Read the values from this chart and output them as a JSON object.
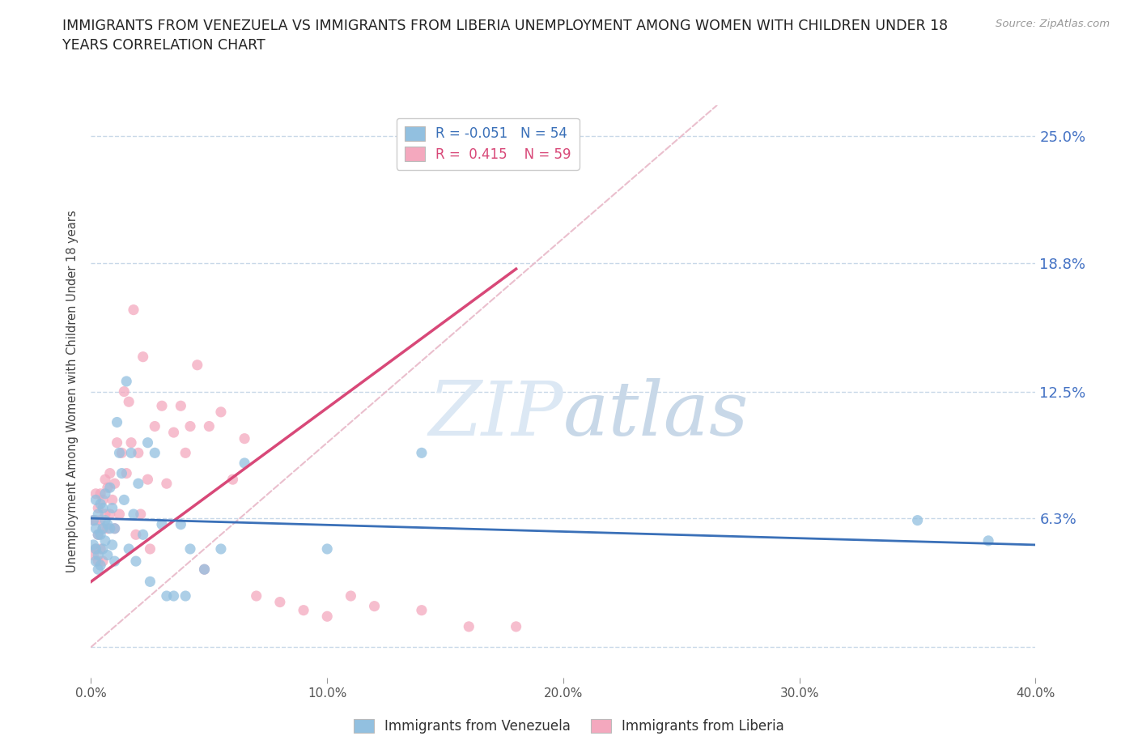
{
  "title": "IMMIGRANTS FROM VENEZUELA VS IMMIGRANTS FROM LIBERIA UNEMPLOYMENT AMONG WOMEN WITH CHILDREN UNDER 18\nYEARS CORRELATION CHART",
  "source_text": "Source: ZipAtlas.com",
  "ylabel": "Unemployment Among Women with Children Under 18 years",
  "xlim": [
    0.0,
    0.4
  ],
  "ylim": [
    -0.015,
    0.265
  ],
  "xticks": [
    0.0,
    0.1,
    0.2,
    0.3,
    0.4
  ],
  "xticklabels": [
    "0.0%",
    "10.0%",
    "20.0%",
    "30.0%",
    "40.0%"
  ],
  "ytick_positions": [
    0.0,
    0.063,
    0.125,
    0.188,
    0.25
  ],
  "ytick_labels": [
    "",
    "6.3%",
    "12.5%",
    "18.8%",
    "25.0%"
  ],
  "color_venezuela": "#92c0e0",
  "color_liberia": "#f4a8be",
  "line_color_venezuela": "#3a70b8",
  "line_color_liberia": "#d84878",
  "diagonal_color": "#e8b8c8",
  "grid_color": "#c8d8e8",
  "background_color": "#ffffff",
  "watermark_color": "#dce8f4",
  "legend_R_venezuela": "-0.051",
  "legend_N_venezuela": "54",
  "legend_R_liberia": "0.415",
  "legend_N_liberia": "59",
  "venezuela_x": [
    0.001,
    0.001,
    0.002,
    0.002,
    0.002,
    0.002,
    0.003,
    0.003,
    0.003,
    0.003,
    0.004,
    0.004,
    0.004,
    0.005,
    0.005,
    0.005,
    0.006,
    0.006,
    0.006,
    0.007,
    0.007,
    0.008,
    0.008,
    0.009,
    0.009,
    0.01,
    0.01,
    0.011,
    0.012,
    0.013,
    0.014,
    0.015,
    0.016,
    0.017,
    0.018,
    0.019,
    0.02,
    0.022,
    0.024,
    0.025,
    0.027,
    0.03,
    0.032,
    0.035,
    0.038,
    0.04,
    0.042,
    0.048,
    0.055,
    0.065,
    0.1,
    0.14,
    0.35,
    0.38
  ],
  "venezuela_y": [
    0.062,
    0.05,
    0.072,
    0.058,
    0.048,
    0.042,
    0.065,
    0.055,
    0.045,
    0.038,
    0.07,
    0.055,
    0.04,
    0.068,
    0.058,
    0.048,
    0.075,
    0.062,
    0.052,
    0.06,
    0.045,
    0.078,
    0.058,
    0.068,
    0.05,
    0.058,
    0.042,
    0.11,
    0.095,
    0.085,
    0.072,
    0.13,
    0.048,
    0.095,
    0.065,
    0.042,
    0.08,
    0.055,
    0.1,
    0.032,
    0.095,
    0.06,
    0.025,
    0.025,
    0.06,
    0.025,
    0.048,
    0.038,
    0.048,
    0.09,
    0.048,
    0.095,
    0.062,
    0.052
  ],
  "liberia_x": [
    0.001,
    0.001,
    0.002,
    0.002,
    0.002,
    0.003,
    0.003,
    0.003,
    0.004,
    0.004,
    0.004,
    0.005,
    0.005,
    0.005,
    0.006,
    0.006,
    0.007,
    0.007,
    0.008,
    0.008,
    0.009,
    0.01,
    0.01,
    0.011,
    0.012,
    0.013,
    0.014,
    0.015,
    0.016,
    0.017,
    0.018,
    0.019,
    0.02,
    0.021,
    0.022,
    0.024,
    0.025,
    0.027,
    0.03,
    0.032,
    0.035,
    0.038,
    0.04,
    0.042,
    0.045,
    0.048,
    0.05,
    0.055,
    0.06,
    0.065,
    0.07,
    0.08,
    0.09,
    0.1,
    0.11,
    0.12,
    0.14,
    0.16,
    0.18
  ],
  "liberia_y": [
    0.062,
    0.045,
    0.075,
    0.062,
    0.048,
    0.068,
    0.055,
    0.042,
    0.075,
    0.062,
    0.048,
    0.072,
    0.058,
    0.042,
    0.082,
    0.065,
    0.078,
    0.058,
    0.085,
    0.065,
    0.072,
    0.08,
    0.058,
    0.1,
    0.065,
    0.095,
    0.125,
    0.085,
    0.12,
    0.1,
    0.165,
    0.055,
    0.095,
    0.065,
    0.142,
    0.082,
    0.048,
    0.108,
    0.118,
    0.08,
    0.105,
    0.118,
    0.095,
    0.108,
    0.138,
    0.038,
    0.108,
    0.115,
    0.082,
    0.102,
    0.025,
    0.022,
    0.018,
    0.015,
    0.025,
    0.02,
    0.018,
    0.01,
    0.01
  ],
  "liberia_line_x0": 0.0,
  "liberia_line_y0": 0.032,
  "liberia_line_x1": 0.18,
  "liberia_line_y1": 0.185,
  "venezuela_line_x0": 0.0,
  "venezuela_line_y0": 0.063,
  "venezuela_line_x1": 0.4,
  "venezuela_line_y1": 0.05
}
